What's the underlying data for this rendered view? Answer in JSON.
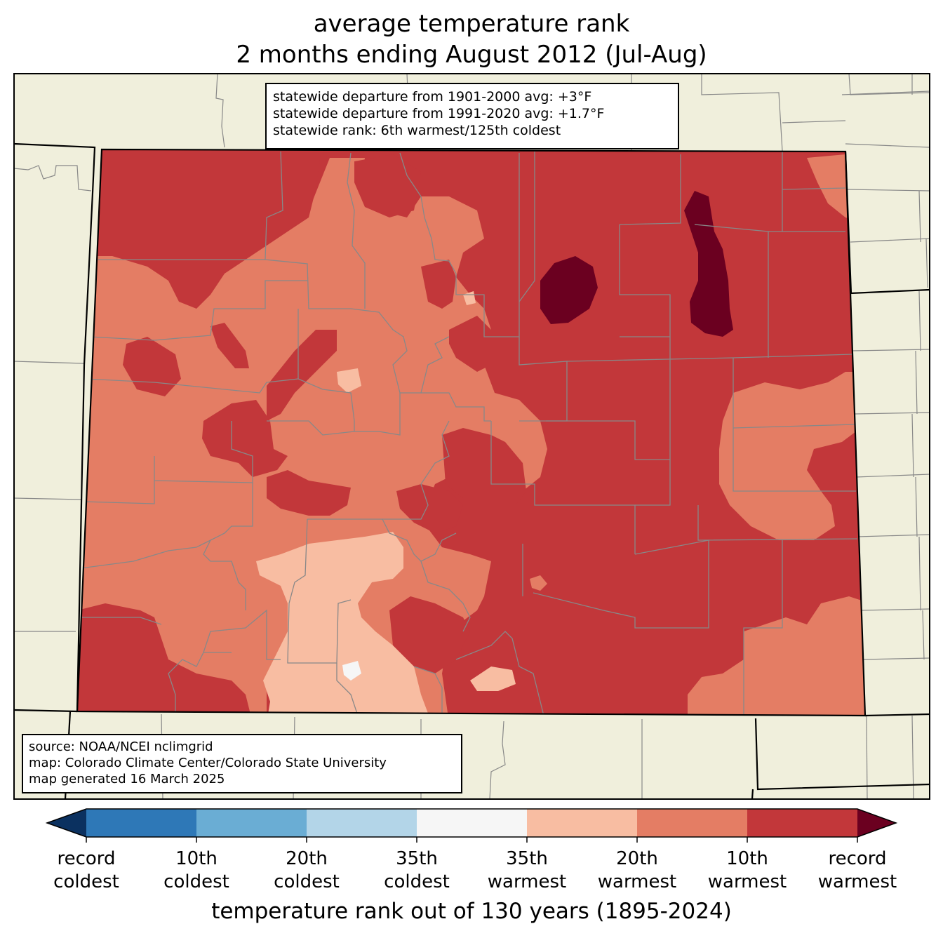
{
  "title": {
    "line1": "average temperature rank",
    "line2": "2 months ending August 2012 (Jul-Aug)"
  },
  "stats": {
    "line1": "statewide departure from 1901-2000 avg: +3°F",
    "line2": "statewide departure from 1991-2020 avg: +1.7°F",
    "line3": "statewide rank: 6th warmest/125th coldest"
  },
  "source": {
    "line1": "source: NOAA/NCEI nclimgrid",
    "line2": "map: Colorado Climate Center/Colorado State University",
    "line3": "map generated 16 March 2025"
  },
  "colorbar": {
    "title": "temperature rank out of 130 years (1895-2024)",
    "colors": [
      "#0b3160",
      "#2e78b7",
      "#6aadd4",
      "#b3d5e8",
      "#f6f6f6",
      "#f8bda2",
      "#e47d64",
      "#c2373a",
      "#6b0020"
    ],
    "labels": [
      {
        "top": "record",
        "bottom": "coldest"
      },
      {
        "top": "10th",
        "bottom": "coldest"
      },
      {
        "top": "20th",
        "bottom": "coldest"
      },
      {
        "top": "35th",
        "bottom": "coldest"
      },
      {
        "top": "35th",
        "bottom": "warmest"
      },
      {
        "top": "20th",
        "bottom": "warmest"
      },
      {
        "top": "10th",
        "bottom": "warmest"
      },
      {
        "top": "record",
        "bottom": "warmest"
      }
    ]
  },
  "map_colors": {
    "background": "#f0efdc",
    "record_warmest": "#6b0020",
    "tenth_warmest": "#c2373a",
    "twentieth_warmest": "#e47d64",
    "thirtyfifth_warmest": "#f8bda2",
    "near_normal": "#f6f6f6"
  }
}
